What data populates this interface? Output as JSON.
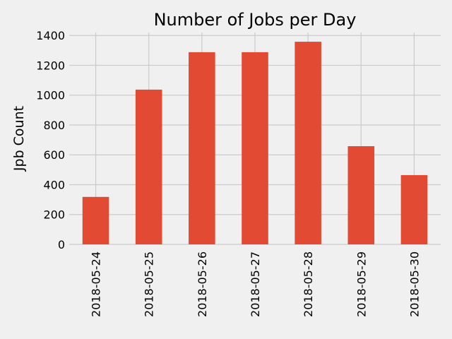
{
  "chart_data": {
    "type": "bar",
    "title": "Number of Jobs per Day",
    "xlabel": "",
    "ylabel": "Jpb Count",
    "categories": [
      "2018-05-24",
      "2018-05-25",
      "2018-05-26",
      "2018-05-27",
      "2018-05-28",
      "2018-05-29",
      "2018-05-30"
    ],
    "values": [
      318,
      1037,
      1288,
      1288,
      1358,
      658,
      464
    ],
    "ylim": [
      0,
      1420
    ],
    "yticks": [
      0,
      200,
      400,
      600,
      800,
      1000,
      1200,
      1400
    ],
    "grid": true,
    "legend": "none",
    "colors": {
      "bar": "#e24a33",
      "background": "#f0f0f0",
      "grid": "#cbcbcb",
      "text": "#000000"
    }
  }
}
